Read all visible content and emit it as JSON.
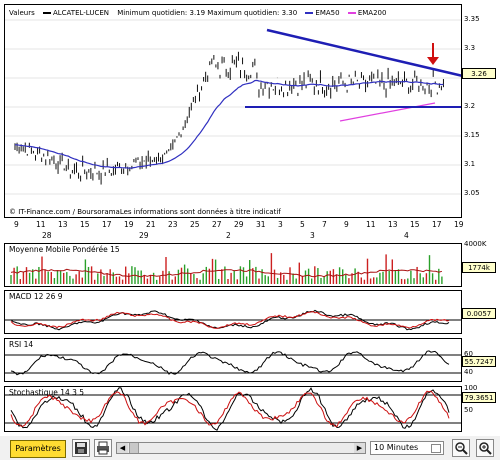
{
  "legend": {
    "valeurs_label": "Valeurs",
    "symbol": "ALCATEL-LUCEN",
    "minmax": "Minimum quotidien: 3.19 Maximum quotidien: 3.30",
    "ema50": "EMA50",
    "ema200": "EMA200",
    "ema50_color": "#3030c0",
    "ema200_color": "#e040e0"
  },
  "price_axis": [
    "3.35",
    "3.3",
    "3.25",
    "3.2",
    "3.15",
    "3.1",
    "3.05"
  ],
  "price_tag": "3.26",
  "credit": "© IT-Finance.com / BoursoramaLes informations sont données à titre indicatif",
  "x_days": [
    "9",
    "13",
    "15",
    "17",
    "21",
    "23",
    "27",
    "29",
    "31",
    "3",
    "5",
    "7",
    "9",
    "11",
    "13",
    "15",
    "17",
    "19",
    "21",
    "23",
    "25",
    "27",
    "29",
    "31",
    "2",
    "4",
    "6",
    "8",
    "10",
    "12",
    "14",
    "16",
    "18",
    "20",
    "22",
    "24",
    "26",
    "28",
    "30",
    "2",
    "4",
    "6",
    "8",
    "10",
    "12",
    "14",
    "16",
    "18",
    "20",
    "22",
    "24",
    "26",
    "28",
    "30",
    "2",
    "4",
    "6"
  ],
  "x_ticks": [
    "9",
    "11",
    "13",
    "15",
    "17",
    "19",
    "21",
    "23",
    "25",
    "27",
    "29",
    "31",
    "2",
    "4",
    "6",
    "8",
    "10",
    "12",
    "14",
    "16",
    "18",
    "20",
    "22",
    "24",
    "26",
    "28",
    "30",
    "1",
    "3",
    "5"
  ],
  "x_labels_main": [
    "9",
    "11",
    "13",
    "15",
    "17",
    "19",
    "21",
    "23",
    "25",
    "27",
    "29",
    "31",
    "3",
    "5",
    "7",
    "9",
    "11",
    "13",
    "15",
    "17",
    "19"
  ],
  "x_months": [
    "28",
    "29",
    "2",
    "3",
    "4"
  ],
  "volume": {
    "title": "Moyenne Mobile Pondérée 15",
    "axis_top": "4000K",
    "tag": "1774k"
  },
  "macd": {
    "title": "MACD 12 26 9",
    "tag": "0.0057"
  },
  "rsi": {
    "title": "RSI 14",
    "tag": "55.7247",
    "axis": [
      "60",
      "40"
    ]
  },
  "stoch": {
    "title": "Stochastique 14 3 5",
    "tag": "79.3651",
    "axis": [
      "100",
      "50"
    ]
  },
  "toolbar": {
    "params_label": "Paramètres",
    "interval": "10 Minutes",
    "save_icon": "save-icon",
    "print_icon": "print-icon",
    "zoom_out_icon": "zoom-out-icon",
    "zoom_in_icon": "zoom-in-icon"
  }
}
